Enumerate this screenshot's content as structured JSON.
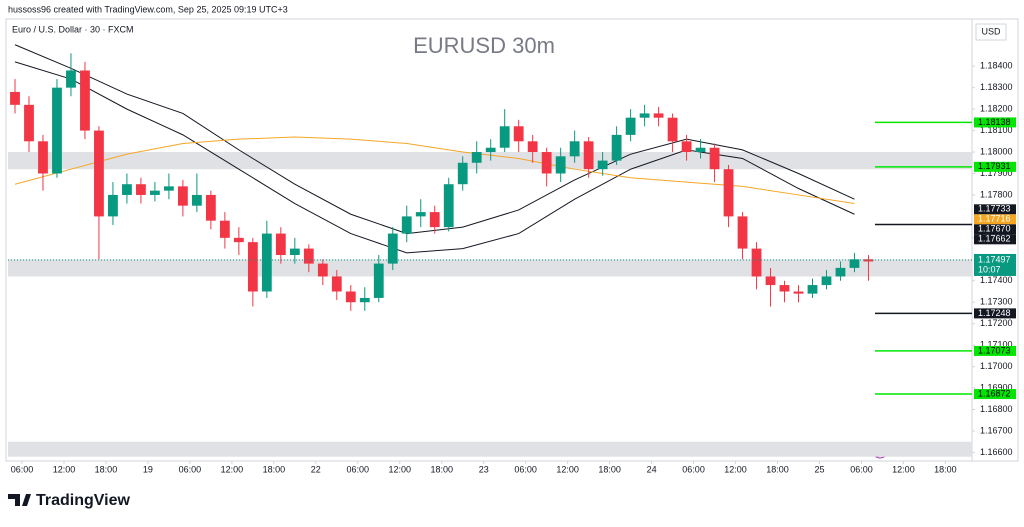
{
  "header": {
    "credit": "hussoss96 created with TradingView.com, Sep 25, 2025 09:19 UTC+3"
  },
  "footer": {
    "brand": "TradingView"
  },
  "chart_data": {
    "type": "candlestick",
    "title": "EURUSD 30m",
    "symbol": "Euro / U.S. Dollar · 30 · FXCM",
    "currency": "USD",
    "up_color": "#089981",
    "down_color": "#f23645",
    "ylim": [
      1.1656,
      1.1862
    ],
    "yticks": [
      {
        "value": 1.184,
        "label": "1.18400"
      },
      {
        "value": 1.183,
        "label": "1.18300"
      },
      {
        "value": 1.182,
        "label": "1.18200"
      },
      {
        "value": 1.181,
        "label": "1.18100"
      },
      {
        "value": 1.18,
        "label": "1.18000"
      },
      {
        "value": 1.179,
        "label": "1.17900"
      },
      {
        "value": 1.178,
        "label": "1.17800"
      },
      {
        "value": 1.176,
        "label": "1.17600"
      },
      {
        "value": 1.174,
        "label": "1.17400"
      },
      {
        "value": 1.173,
        "label": "1.17300"
      },
      {
        "value": 1.172,
        "label": "1.17200"
      },
      {
        "value": 1.171,
        "label": "1.17100"
      },
      {
        "value": 1.17,
        "label": "1.17000"
      },
      {
        "value": 1.169,
        "label": "1.16900"
      },
      {
        "value": 1.168,
        "label": "1.16800"
      },
      {
        "value": 1.167,
        "label": "1.16700"
      },
      {
        "value": 1.166,
        "label": "1.16600"
      }
    ],
    "xlim": [
      0,
      68.9
    ],
    "xticks": [
      {
        "value": 1,
        "label": "06:00"
      },
      {
        "value": 4,
        "label": "12:00"
      },
      {
        "value": 7,
        "label": "18:00"
      },
      {
        "value": 10,
        "label": "19"
      },
      {
        "value": 13,
        "label": "06:00"
      },
      {
        "value": 16,
        "label": "12:00"
      },
      {
        "value": 19,
        "label": "18:00"
      },
      {
        "value": 22,
        "label": "22"
      },
      {
        "value": 25,
        "label": "06:00"
      },
      {
        "value": 28,
        "label": "12:00"
      },
      {
        "value": 31,
        "label": "18:00"
      },
      {
        "value": 34,
        "label": "23"
      },
      {
        "value": 37,
        "label": "06:00"
      },
      {
        "value": 40,
        "label": "12:00"
      },
      {
        "value": 43,
        "label": "18:00"
      },
      {
        "value": 46,
        "label": "24"
      },
      {
        "value": 49,
        "label": "06:00"
      },
      {
        "value": 52,
        "label": "12:00"
      },
      {
        "value": 55,
        "label": "18:00"
      },
      {
        "value": 58,
        "label": "25"
      },
      {
        "value": 61,
        "label": "06:00"
      },
      {
        "value": 64,
        "label": "12:00"
      },
      {
        "value": 67,
        "label": "18:00"
      }
    ],
    "ohlc": [
      [
        1.1828,
        1.1834,
        1.1818,
        1.1822
      ],
      [
        1.1822,
        1.1826,
        1.18,
        1.1805
      ],
      [
        1.1805,
        1.1808,
        1.1782,
        1.179
      ],
      [
        1.179,
        1.1834,
        1.1788,
        1.183
      ],
      [
        1.183,
        1.1846,
        1.1826,
        1.1838
      ],
      [
        1.1838,
        1.1842,
        1.1806,
        1.181
      ],
      [
        1.181,
        1.1812,
        1.175,
        1.177
      ],
      [
        1.177,
        1.1786,
        1.1766,
        1.178
      ],
      [
        1.178,
        1.179,
        1.1776,
        1.1785
      ],
      [
        1.1785,
        1.1788,
        1.1776,
        1.178
      ],
      [
        1.178,
        1.1786,
        1.1777,
        1.1782
      ],
      [
        1.1782,
        1.179,
        1.1778,
        1.1784
      ],
      [
        1.1784,
        1.1787,
        1.177,
        1.1775
      ],
      [
        1.1775,
        1.179,
        1.1772,
        1.178
      ],
      [
        1.178,
        1.1782,
        1.1764,
        1.1768
      ],
      [
        1.1768,
        1.1772,
        1.1755,
        1.176
      ],
      [
        1.176,
        1.1765,
        1.1752,
        1.1758
      ],
      [
        1.1758,
        1.176,
        1.1728,
        1.1735
      ],
      [
        1.1735,
        1.1768,
        1.1732,
        1.1762
      ],
      [
        1.1762,
        1.1765,
        1.1748,
        1.1752
      ],
      [
        1.1752,
        1.176,
        1.1748,
        1.1755
      ],
      [
        1.1755,
        1.1757,
        1.1744,
        1.1748
      ],
      [
        1.1748,
        1.175,
        1.1738,
        1.1742
      ],
      [
        1.1742,
        1.1745,
        1.1731,
        1.1735
      ],
      [
        1.1735,
        1.1738,
        1.1726,
        1.173
      ],
      [
        1.173,
        1.1737,
        1.1726,
        1.1732
      ],
      [
        1.1732,
        1.1752,
        1.173,
        1.1748
      ],
      [
        1.1748,
        1.1765,
        1.1745,
        1.1762
      ],
      [
        1.1762,
        1.1775,
        1.1758,
        1.177
      ],
      [
        1.177,
        1.1778,
        1.1765,
        1.1772
      ],
      [
        1.1772,
        1.1775,
        1.1762,
        1.1765
      ],
      [
        1.1765,
        1.1788,
        1.1763,
        1.1785
      ],
      [
        1.1785,
        1.1798,
        1.1782,
        1.1795
      ],
      [
        1.1795,
        1.1805,
        1.179,
        1.18
      ],
      [
        1.18,
        1.1806,
        1.1796,
        1.1802
      ],
      [
        1.1802,
        1.182,
        1.18,
        1.1812
      ],
      [
        1.1812,
        1.1815,
        1.18,
        1.1805
      ],
      [
        1.1805,
        1.1808,
        1.1795,
        1.18
      ],
      [
        1.18,
        1.1802,
        1.1784,
        1.179
      ],
      [
        1.179,
        1.1802,
        1.1786,
        1.1798
      ],
      [
        1.1798,
        1.181,
        1.1795,
        1.1805
      ],
      [
        1.1805,
        1.1807,
        1.1788,
        1.1792
      ],
      [
        1.1792,
        1.18,
        1.1789,
        1.1796
      ],
      [
        1.1796,
        1.1812,
        1.1794,
        1.1808
      ],
      [
        1.1808,
        1.182,
        1.1805,
        1.1816
      ],
      [
        1.1816,
        1.1822,
        1.1812,
        1.1818
      ],
      [
        1.1818,
        1.1821,
        1.1812,
        1.1816
      ],
      [
        1.1816,
        1.1818,
        1.18,
        1.1805
      ],
      [
        1.1805,
        1.1808,
        1.1796,
        1.18
      ],
      [
        1.18,
        1.1806,
        1.1797,
        1.1802
      ],
      [
        1.1802,
        1.1804,
        1.1786,
        1.1792
      ],
      [
        1.1792,
        1.1794,
        1.1765,
        1.177
      ],
      [
        1.177,
        1.1772,
        1.175,
        1.1755
      ],
      [
        1.1755,
        1.1758,
        1.1736,
        1.1742
      ],
      [
        1.1742,
        1.1746,
        1.1728,
        1.1738
      ],
      [
        1.1738,
        1.174,
        1.173,
        1.1735
      ],
      [
        1.1735,
        1.1738,
        1.173,
        1.1734
      ],
      [
        1.1734,
        1.1741,
        1.1732,
        1.1738
      ],
      [
        1.1738,
        1.1745,
        1.1736,
        1.1742
      ],
      [
        1.1742,
        1.1749,
        1.174,
        1.1746
      ],
      [
        1.1746,
        1.1753,
        1.1744,
        1.175
      ],
      [
        1.175,
        1.1752,
        1.174,
        1.1749
      ]
    ],
    "overlay_index": [
      0,
      4,
      8,
      12,
      16,
      20,
      24,
      28,
      32,
      36,
      40,
      44,
      48,
      52,
      56,
      60
    ],
    "overlays": [
      {
        "color": "#131722",
        "values": [
          1.185,
          1.1839,
          1.1827,
          1.1818,
          1.1801,
          1.1785,
          1.1771,
          1.1762,
          1.1765,
          1.1773,
          1.1787,
          1.1799,
          1.1806,
          1.1801,
          1.179,
          1.1778
        ]
      },
      {
        "color": "#131722",
        "values": [
          1.1842,
          1.1834,
          1.182,
          1.1808,
          1.1792,
          1.1776,
          1.1762,
          1.1753,
          1.1755,
          1.1762,
          1.1778,
          1.1792,
          1.1801,
          1.1797,
          1.1783,
          1.1771
        ]
      },
      {
        "color": "#f5a623",
        "values": [
          1.1785,
          1.1792,
          1.1799,
          1.1804,
          1.1806,
          1.1807,
          1.1806,
          1.1804,
          1.18,
          1.1797,
          1.1792,
          1.1788,
          1.1786,
          1.1784,
          1.178,
          1.1776
        ]
      }
    ],
    "zones": [
      [
        1.1792,
        1.18
      ],
      [
        1.1742,
        1.175
      ],
      [
        1.1658,
        1.1665
      ]
    ],
    "zone_color": "#dfe1e5",
    "current": {
      "value": 1.17497,
      "label": "1.17497",
      "countdown": "10:07",
      "color": "#089981"
    },
    "levels": [
      {
        "value": 1.18138,
        "label": "1.18138",
        "color": "#00e600",
        "line": true
      },
      {
        "value": 1.17931,
        "label": "1.17931",
        "color": "#00e600",
        "line": true
      },
      {
        "value": 1.17733,
        "label": "1.17733",
        "color": "#131722",
        "line": false
      },
      {
        "value": 1.17716,
        "label": "1.17716",
        "color": "#f5a623",
        "line": false
      },
      {
        "value": 1.1767,
        "label": "1.17670",
        "color": "#131722",
        "line": false
      },
      {
        "value": 1.17662,
        "label": "1.17662",
        "color": "#131722",
        "line": true
      },
      {
        "value": 1.17248,
        "label": "1.17248",
        "color": "#131722",
        "line": true
      },
      {
        "value": 1.17073,
        "label": "1.17073",
        "color": "#00e600",
        "line": true
      },
      {
        "value": 1.16872,
        "label": "1.16872",
        "color": "#00e600",
        "line": true
      }
    ]
  }
}
